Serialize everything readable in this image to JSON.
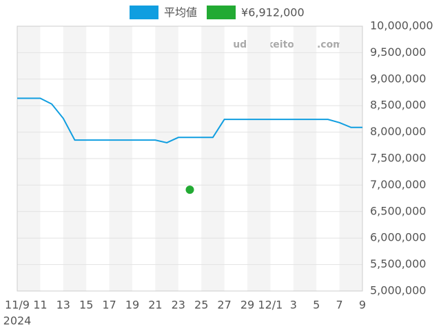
{
  "chart_data": {
    "type": "line",
    "watermark": "udedokeitoushi.com",
    "categories": [
      "11/9",
      null,
      "11",
      null,
      "13",
      null,
      "15",
      null,
      "17",
      null,
      "19",
      null,
      "21",
      null,
      "23",
      null,
      "25",
      null,
      "27",
      null,
      "29",
      null,
      "12/1",
      null,
      "3",
      null,
      "5",
      null,
      "7",
      null,
      "9"
    ],
    "x_year_label": "2024",
    "series": [
      {
        "name": "平均値",
        "type": "line",
        "color": "#109ee0",
        "values": [
          8640000,
          8640000,
          8640000,
          8530000,
          8260000,
          7850000,
          7850000,
          7850000,
          7850000,
          7850000,
          7850000,
          7850000,
          7850000,
          7800000,
          7900000,
          7900000,
          7900000,
          7900000,
          8240000,
          8240000,
          8240000,
          8240000,
          8240000,
          8240000,
          8240000,
          8240000,
          8240000,
          8240000,
          8180000,
          8090000,
          8090000
        ]
      },
      {
        "name": "¥6,912,000",
        "type": "scatter",
        "color": "#22aa33",
        "values": [
          null,
          null,
          null,
          null,
          null,
          null,
          null,
          null,
          null,
          null,
          null,
          null,
          null,
          null,
          null,
          6912000,
          null,
          null,
          null,
          null,
          null,
          null,
          null,
          null,
          null,
          null,
          null,
          null,
          null,
          null,
          null
        ]
      }
    ],
    "ylim": [
      5000000,
      10000000
    ],
    "yticks": [
      {
        "value": 5000000,
        "label": "5,000,000"
      },
      {
        "value": 5500000,
        "label": "5,500,000"
      },
      {
        "value": 6000000,
        "label": "6,000,000"
      },
      {
        "value": 6500000,
        "label": "6,500,000"
      },
      {
        "value": 7000000,
        "label": "7,000,000"
      },
      {
        "value": 7500000,
        "label": "7,500,000"
      },
      {
        "value": 8000000,
        "label": "8,000,000"
      },
      {
        "value": 8500000,
        "label": "8,500,000"
      },
      {
        "value": 9000000,
        "label": "9,000,000"
      },
      {
        "value": 9500000,
        "label": "9,500,000"
      },
      {
        "value": 10000000,
        "label": "10,000,000"
      }
    ],
    "grid": true
  }
}
